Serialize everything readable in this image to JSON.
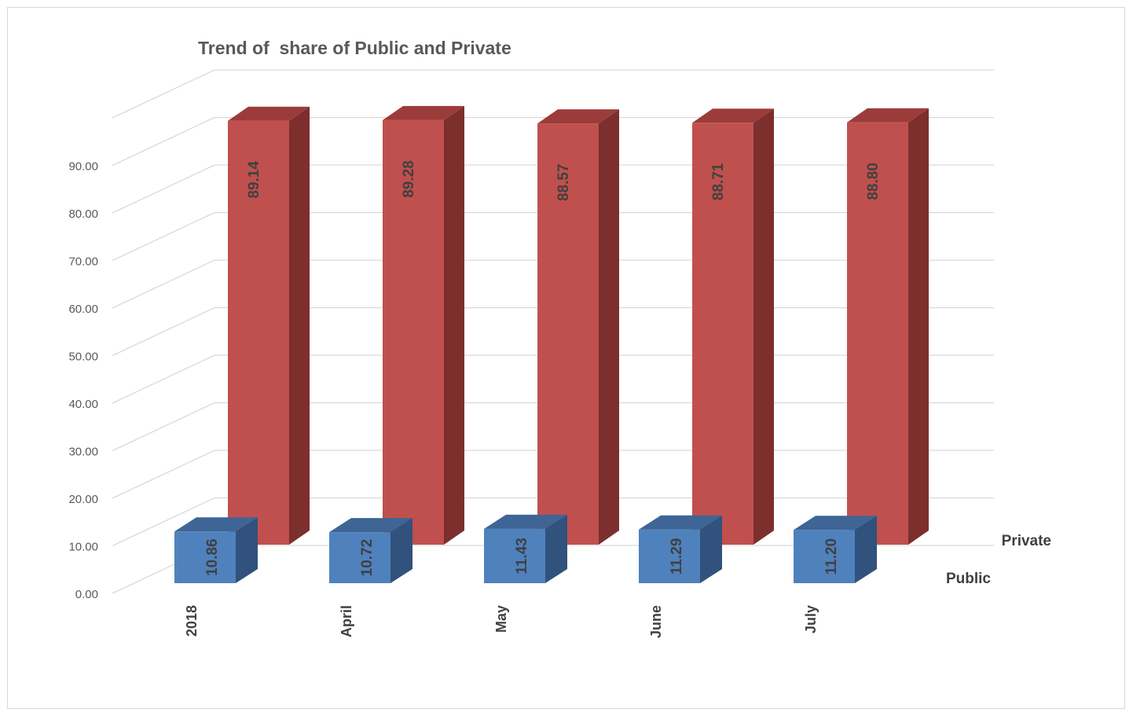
{
  "chart_data": {
    "type": "bar",
    "title": "Trend of  share of Public and Private",
    "categories": [
      "2018",
      "April",
      "May",
      "June",
      "July"
    ],
    "series": [
      {
        "name": "Public",
        "values": [
          10.86,
          10.72,
          11.43,
          11.29,
          11.2
        ],
        "labels": [
          "10.86",
          "10.72",
          "11.43",
          "11.29",
          "11.20"
        ],
        "color": "#4f81bd",
        "side_color": "#30527c",
        "top_color": "#3e6596"
      },
      {
        "name": "Private",
        "values": [
          89.14,
          89.28,
          88.57,
          88.71,
          88.8
        ],
        "labels": [
          "89.14",
          "89.28",
          "88.57",
          "88.71",
          "88.80"
        ],
        "color": "#c0504d",
        "side_color": "#7c2f2d",
        "top_color": "#9c3c3a"
      }
    ],
    "yticks": [
      "0.00",
      "10.00",
      "20.00",
      "30.00",
      "40.00",
      "50.00",
      "60.00",
      "70.00",
      "80.00",
      "90.00"
    ],
    "ylim": [
      0,
      100
    ],
    "grid": true,
    "style": "3d-column"
  }
}
